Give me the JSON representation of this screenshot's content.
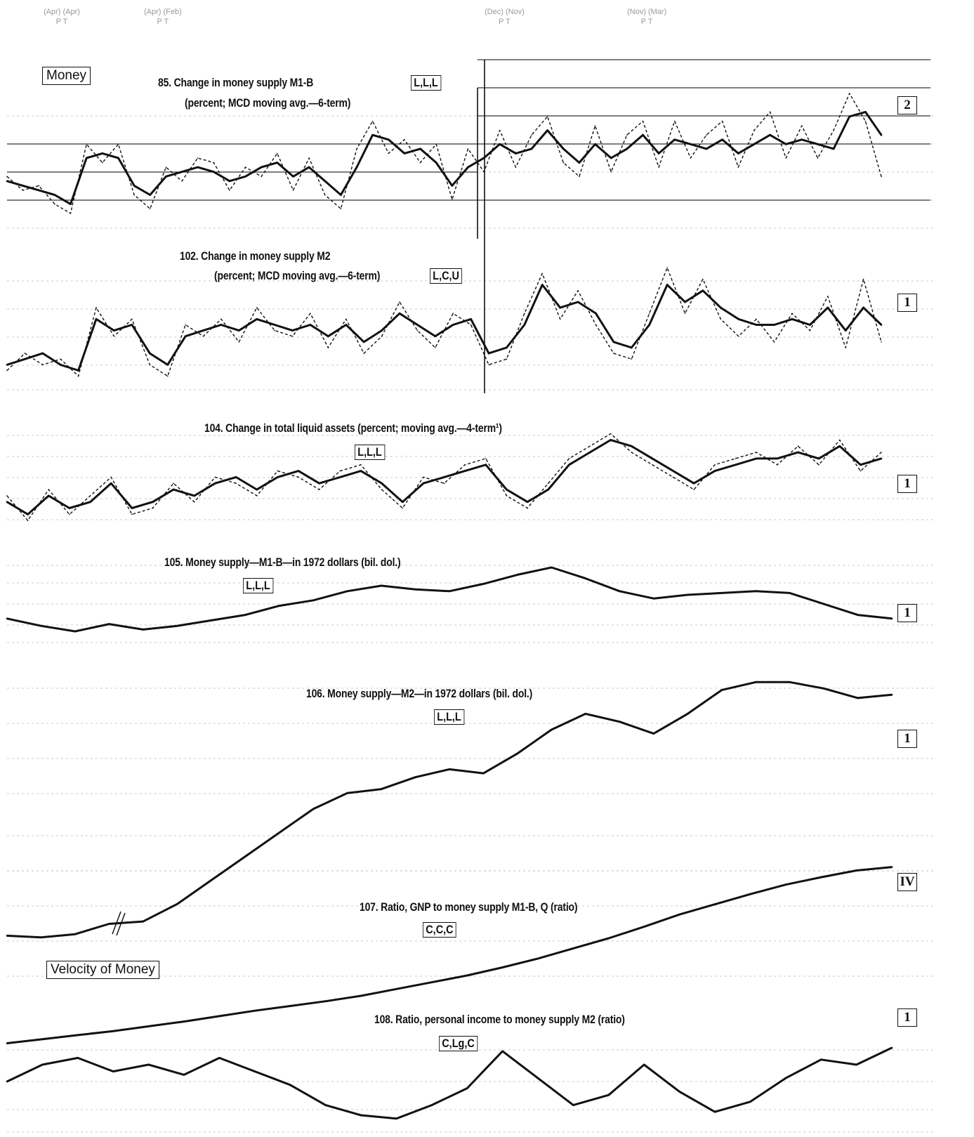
{
  "header": {
    "cycle_labels": [
      {
        "top": "(Apr) (Apr)",
        "bottom": "P T"
      },
      {
        "top": "(Apr) (Feb)",
        "bottom": "P T"
      },
      {
        "top": "(Dec) (Nov)",
        "bottom": "P T"
      },
      {
        "top": "(Nov) (Mar)",
        "bottom": "P T"
      }
    ]
  },
  "sections": {
    "money": "Money",
    "velocity": "Velocity of Money"
  },
  "panels": [
    {
      "title_line1": "85. Change in money supply M1-B",
      "title_line2": "(percent; MCD moving avg.—6-term)",
      "timing": "L,L,L",
      "scale": "2"
    },
    {
      "title_line1": "102. Change in money supply M2",
      "title_line2": "(percent; MCD moving avg.—6-term)",
      "timing": "L,C,U",
      "scale": "1"
    },
    {
      "title_line1": "104. Change in total liquid assets (percent; moving avg.—4-term¹)",
      "title_line2": "",
      "timing": "L,L,L",
      "scale": "1"
    },
    {
      "title_line1": "105. Money supply—M1-B—in 1972 dollars (bil. dol.)",
      "title_line2": "",
      "timing": "L,L,L",
      "scale": "1"
    },
    {
      "title_line1": "106. Money supply—M2—in 1972 dollars (bil. dol.)",
      "title_line2": "",
      "timing": "L,L,L",
      "scale": "1"
    },
    {
      "title_line1": "107. Ratio, GNP to money supply M1-B, Q (ratio)",
      "title_line2": "",
      "timing": "C,C,C",
      "scale": "IV"
    },
    {
      "title_line1": "108. Ratio, personal income to money supply M2 (ratio)",
      "title_line2": "",
      "timing": "C,Lg,C",
      "scale": "1"
    }
  ],
  "colors": {
    "line": "#111111",
    "grid": "#b8b8b8",
    "recession": "#111111"
  },
  "chart_data": [
    {
      "type": "line",
      "title": "85. Change in money supply M1-B",
      "series": [
        {
          "values": [
            0.5,
            0.4,
            0.3,
            0.2,
            0.0,
            1.0,
            1.1,
            1.0,
            0.4,
            0.2,
            0.6,
            0.7,
            0.8,
            0.7,
            0.5,
            0.6,
            0.8,
            0.9,
            0.6,
            0.8,
            0.5,
            0.2,
            0.8,
            1.5,
            1.4,
            1.1,
            1.2,
            0.9,
            0.4,
            0.8,
            1.0,
            1.3,
            1.1,
            1.2,
            1.6,
            1.2,
            0.9,
            1.3,
            1.0,
            1.2,
            1.5,
            1.1,
            1.4,
            1.3,
            1.2,
            1.4,
            1.1,
            1.3,
            1.5,
            1.3,
            1.4,
            1.3,
            1.2,
            1.9,
            2.0,
            1.5
          ]
        },
        {
          "values": [
            0.6,
            0.3,
            0.4,
            0.0,
            -0.2,
            1.3,
            0.9,
            1.3,
            0.2,
            -0.1,
            0.8,
            0.5,
            1.0,
            0.9,
            0.3,
            0.8,
            0.6,
            1.1,
            0.3,
            1.0,
            0.2,
            -0.1,
            1.2,
            1.8,
            1.1,
            1.4,
            0.9,
            1.3,
            0.1,
            1.2,
            0.7,
            1.6,
            0.8,
            1.5,
            1.9,
            0.9,
            0.6,
            1.7,
            0.7,
            1.5,
            1.8,
            0.8,
            1.8,
            1.0,
            1.5,
            1.8,
            0.8,
            1.6,
            2.0,
            1.0,
            1.7,
            1.0,
            1.6,
            2.4,
            1.8,
            0.6
          ]
        }
      ]
    },
    {
      "type": "line",
      "title": "102. Change in money supply M2",
      "series": [
        {
          "values": [
            0.3,
            0.4,
            0.5,
            0.3,
            0.2,
            1.1,
            0.9,
            1.0,
            0.5,
            0.3,
            0.8,
            0.9,
            1.0,
            0.9,
            1.1,
            1.0,
            0.9,
            1.0,
            0.8,
            1.0,
            0.7,
            0.9,
            1.2,
            1.0,
            0.8,
            1.0,
            1.1,
            0.5,
            0.6,
            1.0,
            1.7,
            1.3,
            1.4,
            1.2,
            0.7,
            0.6,
            1.0,
            1.7,
            1.4,
            1.6,
            1.3,
            1.1,
            1.0,
            1.0,
            1.1,
            1.0,
            1.3,
            0.9,
            1.3,
            1.0
          ]
        },
        {
          "values": [
            0.2,
            0.5,
            0.3,
            0.4,
            0.1,
            1.3,
            0.8,
            1.1,
            0.3,
            0.1,
            1.0,
            0.8,
            1.1,
            0.7,
            1.3,
            0.9,
            0.8,
            1.2,
            0.6,
            1.1,
            0.5,
            0.8,
            1.4,
            0.9,
            0.6,
            1.2,
            1.0,
            0.3,
            0.4,
            1.2,
            1.9,
            1.1,
            1.6,
            1.0,
            0.5,
            0.4,
            1.2,
            2.0,
            1.2,
            1.8,
            1.1,
            0.8,
            1.1,
            0.7,
            1.2,
            0.9,
            1.5,
            0.6,
            1.8,
            0.7
          ]
        }
      ]
    },
    {
      "type": "line",
      "title": "104. Change in total liquid assets",
      "series": [
        {
          "values": [
            0.6,
            0.4,
            0.7,
            0.5,
            0.6,
            0.9,
            0.5,
            0.6,
            0.8,
            0.7,
            0.9,
            1.0,
            0.8,
            1.0,
            1.1,
            0.9,
            1.0,
            1.1,
            0.9,
            0.6,
            0.9,
            1.0,
            1.1,
            1.2,
            0.8,
            0.6,
            0.8,
            1.2,
            1.4,
            1.6,
            1.5,
            1.3,
            1.1,
            0.9,
            1.1,
            1.2,
            1.3,
            1.3,
            1.4,
            1.3,
            1.5,
            1.2,
            1.3
          ]
        },
        {
          "values": [
            0.7,
            0.3,
            0.8,
            0.4,
            0.7,
            1.0,
            0.4,
            0.5,
            0.9,
            0.6,
            1.0,
            0.9,
            0.7,
            1.1,
            1.0,
            0.8,
            1.1,
            1.2,
            0.8,
            0.5,
            1.0,
            0.9,
            1.2,
            1.3,
            0.7,
            0.5,
            0.9,
            1.3,
            1.5,
            1.7,
            1.4,
            1.2,
            1.0,
            0.8,
            1.2,
            1.3,
            1.4,
            1.2,
            1.5,
            1.2,
            1.6,
            1.1,
            1.4
          ]
        }
      ]
    },
    {
      "type": "line",
      "title": "105. Money supply—M1-B—in 1972 dollars",
      "series": [
        {
          "values": [
            212,
            208,
            205,
            209,
            206,
            208,
            211,
            214,
            219,
            222,
            227,
            230,
            228,
            227,
            231,
            236,
            240,
            234,
            227,
            223,
            225,
            226,
            227,
            226,
            220,
            214,
            212
          ]
        }
      ]
    },
    {
      "type": "line",
      "title": "106. Money supply—M2—in 1972 dollars",
      "series": [
        {
          "values": [
            400,
            398,
            402,
            415,
            418,
            440,
            470,
            500,
            530,
            560,
            580,
            585,
            600,
            610,
            605,
            630,
            660,
            680,
            670,
            655,
            680,
            710,
            720,
            720,
            712,
            700,
            704
          ]
        }
      ]
    },
    {
      "type": "line",
      "title": "107. Ratio, GNP to money supply M1-B",
      "series": [
        {
          "values": [
            3.5,
            3.56,
            3.62,
            3.68,
            3.75,
            3.82,
            3.9,
            3.98,
            4.05,
            4.12,
            4.2,
            4.3,
            4.4,
            4.5,
            4.62,
            4.75,
            4.9,
            5.05,
            5.22,
            5.4,
            5.55,
            5.7,
            5.84,
            5.95,
            6.05,
            6.1
          ]
        }
      ]
    },
    {
      "type": "line",
      "title": "108. Ratio, personal income to money supply M2",
      "series": [
        {
          "values": [
            1.2,
            1.3,
            1.34,
            1.26,
            1.3,
            1.24,
            1.34,
            1.26,
            1.18,
            1.06,
            1.0,
            0.98,
            1.06,
            1.16,
            1.38,
            1.22,
            1.06,
            1.12,
            1.3,
            1.14,
            1.02,
            1.08,
            1.22,
            1.33,
            1.3,
            1.4
          ]
        }
      ]
    }
  ]
}
